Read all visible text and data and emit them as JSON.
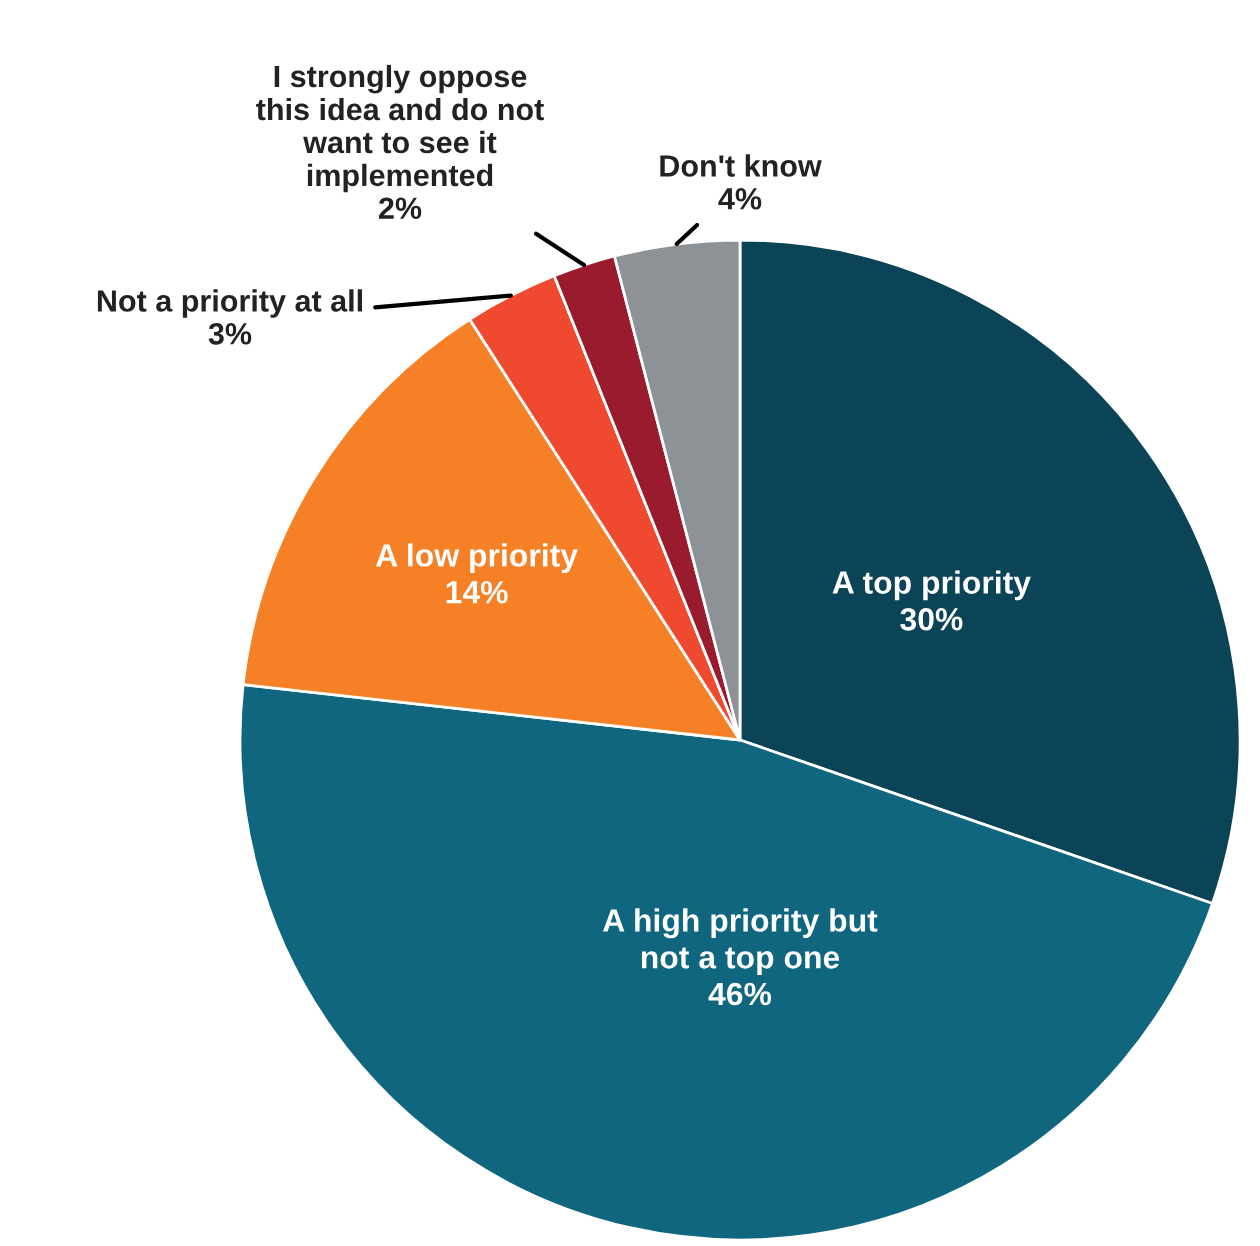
{
  "chart_data": {
    "type": "pie",
    "categories": [
      "A top priority",
      "A high priority but\nnot a top one",
      "A low priority",
      "Not a priority at all",
      "I strongly oppose\nthis idea and do not\nwant to see it\nimplemented",
      "Don't know"
    ],
    "values": [
      30,
      46,
      14,
      3,
      2,
      4
    ],
    "colors": [
      "#0b4357",
      "#10657f",
      "#f58025",
      "#ef4a2f",
      "#9b1b2e",
      "#8c9296"
    ],
    "value_labels": [
      "30%",
      "46%",
      "14%",
      "3%",
      "2%",
      "4%"
    ],
    "legend": false
  }
}
